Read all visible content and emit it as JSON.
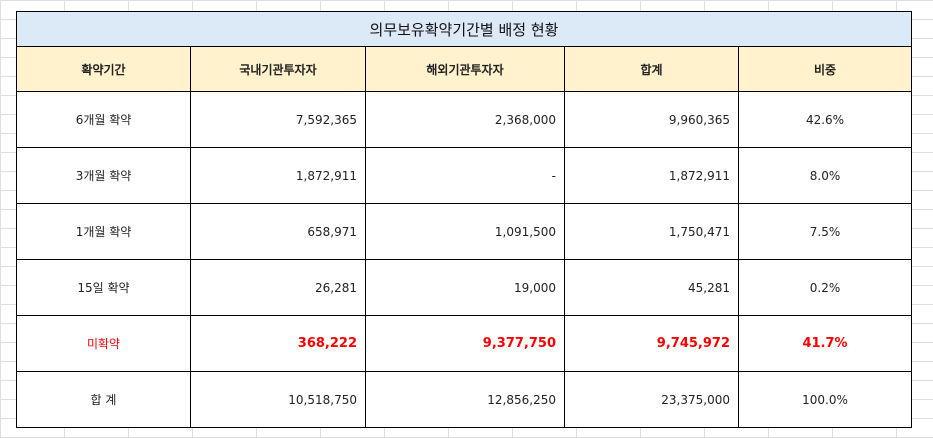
{
  "title": "의무보유확약기간별 배정 현황",
  "headers": [
    "확약기간",
    "국내기관투자자",
    "해외기관투자자",
    "합계",
    "비중"
  ],
  "rows": [
    {
      "period": "6개월 확약",
      "domestic": "7,592,365",
      "foreign": "2,368,000",
      "total": "9,960,365",
      "ratio": "42.6%"
    },
    {
      "period": "3개월 확약",
      "domestic": "1,872,911",
      "foreign": "-",
      "total": "1,872,911",
      "ratio": "8.0%"
    },
    {
      "period": "1개월 확약",
      "domestic": "658,971",
      "foreign": "1,091,500",
      "total": "1,750,471",
      "ratio": "7.5%"
    },
    {
      "period": "15일 확약",
      "domestic": "26,281",
      "foreign": "19,000",
      "total": "45,281",
      "ratio": "0.2%"
    },
    {
      "period": "미확약",
      "domestic": "368,222",
      "foreign": "9,377,750",
      "total": "9,745,972",
      "ratio": "41.7%"
    },
    {
      "period": "합 계",
      "domestic": "10,518,750",
      "foreign": "12,856,250",
      "total": "23,375,000",
      "ratio": "100.0%"
    }
  ],
  "colors": {
    "title_bg": "#dce9f7",
    "header_bg": "#fff2cc",
    "highlight_text": "#ff0000",
    "border": "#000000"
  }
}
